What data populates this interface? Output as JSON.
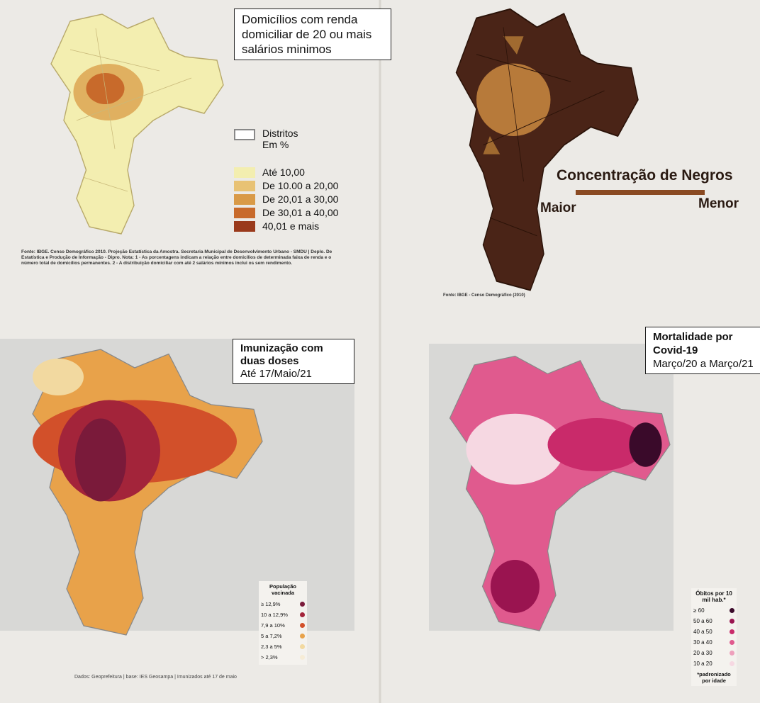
{
  "panels": [
    {
      "title": "Domicílios com renda domiciliar de 20 ou mais salários minimos",
      "legend_heading": [
        "Distritos",
        "Em %"
      ],
      "legend": [
        {
          "label": "Até 10,00",
          "color": "#f3eeb0"
        },
        {
          "label": "De 10.00 a 20,00",
          "color": "#e8c274"
        },
        {
          "label": "De 20,01 a 30,00",
          "color": "#d99a47"
        },
        {
          "label": "De 30,01 a 40,00",
          "color": "#c86a2b"
        },
        {
          "label": "40,01 e mais",
          "color": "#9a3a1c"
        }
      ],
      "source": "Fonte: IBGE. Censo Demográfico 2010. Projeção Estatística da Amostra. Secretaria Municipal de Desenvolvimento Urbano - SMDU | Deplo. De Estatística e Produção de Informação - Dipro. Nota: 1 - As porcentagens indicam a relação entre domicílios de determinada faixa de renda e o número total de domicílios permanentes. 2 - A distribuição domiciliar com até 2 salários mínimos inclui os sem rendimento."
    },
    {
      "title": "Concentração de Negros",
      "scale_left": "Maior",
      "scale_right": "Menor",
      "source": "Fonte: IBGE - Censo Demográfico (2010)"
    },
    {
      "title": "Imunização com duas doses",
      "subtitle": "Até 17/Maio/21",
      "legend_heading": "População vacinada",
      "legend": [
        {
          "label": "≥ 12,9%",
          "color": "#7a1a3a"
        },
        {
          "label": "10 a 12,9%",
          "color": "#a3243a"
        },
        {
          "label": "7,9 a 10%",
          "color": "#d2502a"
        },
        {
          "label": "5 a 7,2%",
          "color": "#e8a24a"
        },
        {
          "label": "2,3 a 5%",
          "color": "#f2d9a0"
        },
        {
          "label": "> 2,3%",
          "color": "#f6ecd6"
        }
      ],
      "source": "Dados: Geoprefeitura | base: IES Geosampa | Imunizados até 17 de maio"
    },
    {
      "title": "Mortalidade por Covid-19",
      "subtitle": "Março/20 a Março/21",
      "legend_heading": "Óbitos por 10 mil hab.*",
      "legend": [
        {
          "label": "≥ 60",
          "color": "#3a0a2a"
        },
        {
          "label": "50 a 60",
          "color": "#9a1450"
        },
        {
          "label": "40 a 50",
          "color": "#c92a6a"
        },
        {
          "label": "30 a 40",
          "color": "#e05a8e"
        },
        {
          "label": "20 a 30",
          "color": "#eea0bc"
        },
        {
          "label": "10 a 20",
          "color": "#f6d8e2"
        }
      ],
      "note": "*padronizado por idade"
    }
  ]
}
